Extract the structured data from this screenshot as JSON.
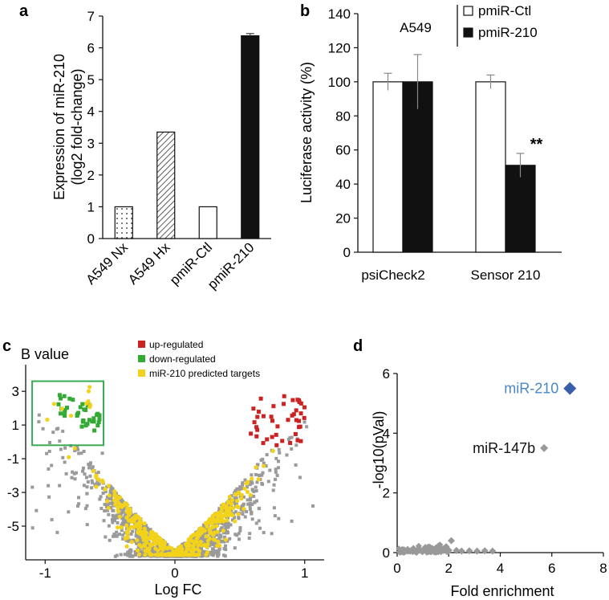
{
  "chart_data": [
    {
      "panel": "a",
      "type": "bar",
      "categories": [
        "A549 Nx",
        "A549 Hx",
        "pmiR-Ctl",
        "pmiR-210"
      ],
      "values": [
        1.0,
        3.35,
        1.0,
        6.38
      ],
      "errors": [
        0,
        0,
        0,
        0.07
      ],
      "fills": [
        "dotted",
        "hatched",
        "white",
        "black"
      ],
      "ylabel_line1": "Expression of miR-210",
      "ylabel_line2": "(log2 fold-change)",
      "ylim": [
        0,
        7
      ],
      "yticks": [
        "0",
        "1",
        "2",
        "3",
        "4",
        "5",
        "6",
        "7"
      ]
    },
    {
      "panel": "b",
      "type": "bar",
      "categories": [
        "psiCheck2",
        "Sensor 210"
      ],
      "series": [
        {
          "name": "pmiR-Ctl",
          "fill": "white",
          "values": [
            100,
            100
          ],
          "errors": [
            5,
            4
          ]
        },
        {
          "name": "pmiR-210",
          "fill": "black",
          "values": [
            100,
            51
          ],
          "errors": [
            16,
            7
          ]
        }
      ],
      "ylabel": "Luciferase activity (%)",
      "ylim": [
        0,
        140
      ],
      "yticks": [
        "0",
        "20",
        "40",
        "60",
        "80",
        "100",
        "120",
        "140"
      ],
      "legend_group_label": "A549",
      "annotation": "**"
    },
    {
      "panel": "c",
      "type": "scatter",
      "title": "B value",
      "xlabel": "Log FC",
      "xticks": [
        "-1",
        "0",
        "1"
      ],
      "yticks": [
        "3",
        "1",
        "-1",
        "-3",
        "-5"
      ],
      "xlim": [
        -1.15,
        1.15
      ],
      "ylim": [
        -7,
        4.2
      ],
      "legend": [
        {
          "label": "up-regulated",
          "color": "#cc2222"
        },
        {
          "label": "down-regulated",
          "color": "#33aa33"
        },
        {
          "label": "miR-210 predicted targets",
          "color": "#f2d21a"
        }
      ],
      "highlight_box": {
        "x": [
          -1.1,
          -0.55
        ],
        "y": [
          -0.2,
          3.6
        ],
        "color": "#3aaa55"
      }
    },
    {
      "panel": "d",
      "type": "scatter",
      "xlabel": "Fold enrichment",
      "ylabel": "-log10(pVal)",
      "xlim": [
        0,
        8
      ],
      "ylim": [
        0,
        6
      ],
      "xticks": [
        "0",
        "2",
        "4",
        "6",
        "8"
      ],
      "yticks": [
        "0",
        "2",
        "4",
        "6"
      ],
      "labeled_points": [
        {
          "label": "miR-210",
          "x": 6.7,
          "y": 5.5,
          "color": "#3a5daa",
          "label_color": "#4a86c8"
        },
        {
          "label": "miR-147b",
          "x": 5.7,
          "y": 3.5,
          "color": "#999999",
          "label_color": "#111111"
        }
      ],
      "background_points": [
        [
          0.1,
          0.02
        ],
        [
          0.3,
          0.03
        ],
        [
          0.5,
          0.05
        ],
        [
          0.7,
          0.04
        ],
        [
          0.9,
          0.08
        ],
        [
          1.1,
          0.1
        ],
        [
          1.3,
          0.12
        ],
        [
          1.5,
          0.15
        ],
        [
          1.7,
          0.1
        ],
        [
          1.9,
          0.2
        ],
        [
          2.1,
          0.4
        ],
        [
          2.0,
          0.08
        ],
        [
          2.3,
          0.07
        ],
        [
          2.5,
          0.05
        ],
        [
          2.8,
          0.06
        ],
        [
          3.1,
          0.05
        ],
        [
          3.4,
          0.06
        ],
        [
          3.7,
          0.05
        ],
        [
          1.2,
          0.18
        ],
        [
          0.8,
          0.1
        ],
        [
          1.6,
          0.22
        ],
        [
          1.8,
          0.12
        ]
      ],
      "point_color": "#999999"
    }
  ]
}
